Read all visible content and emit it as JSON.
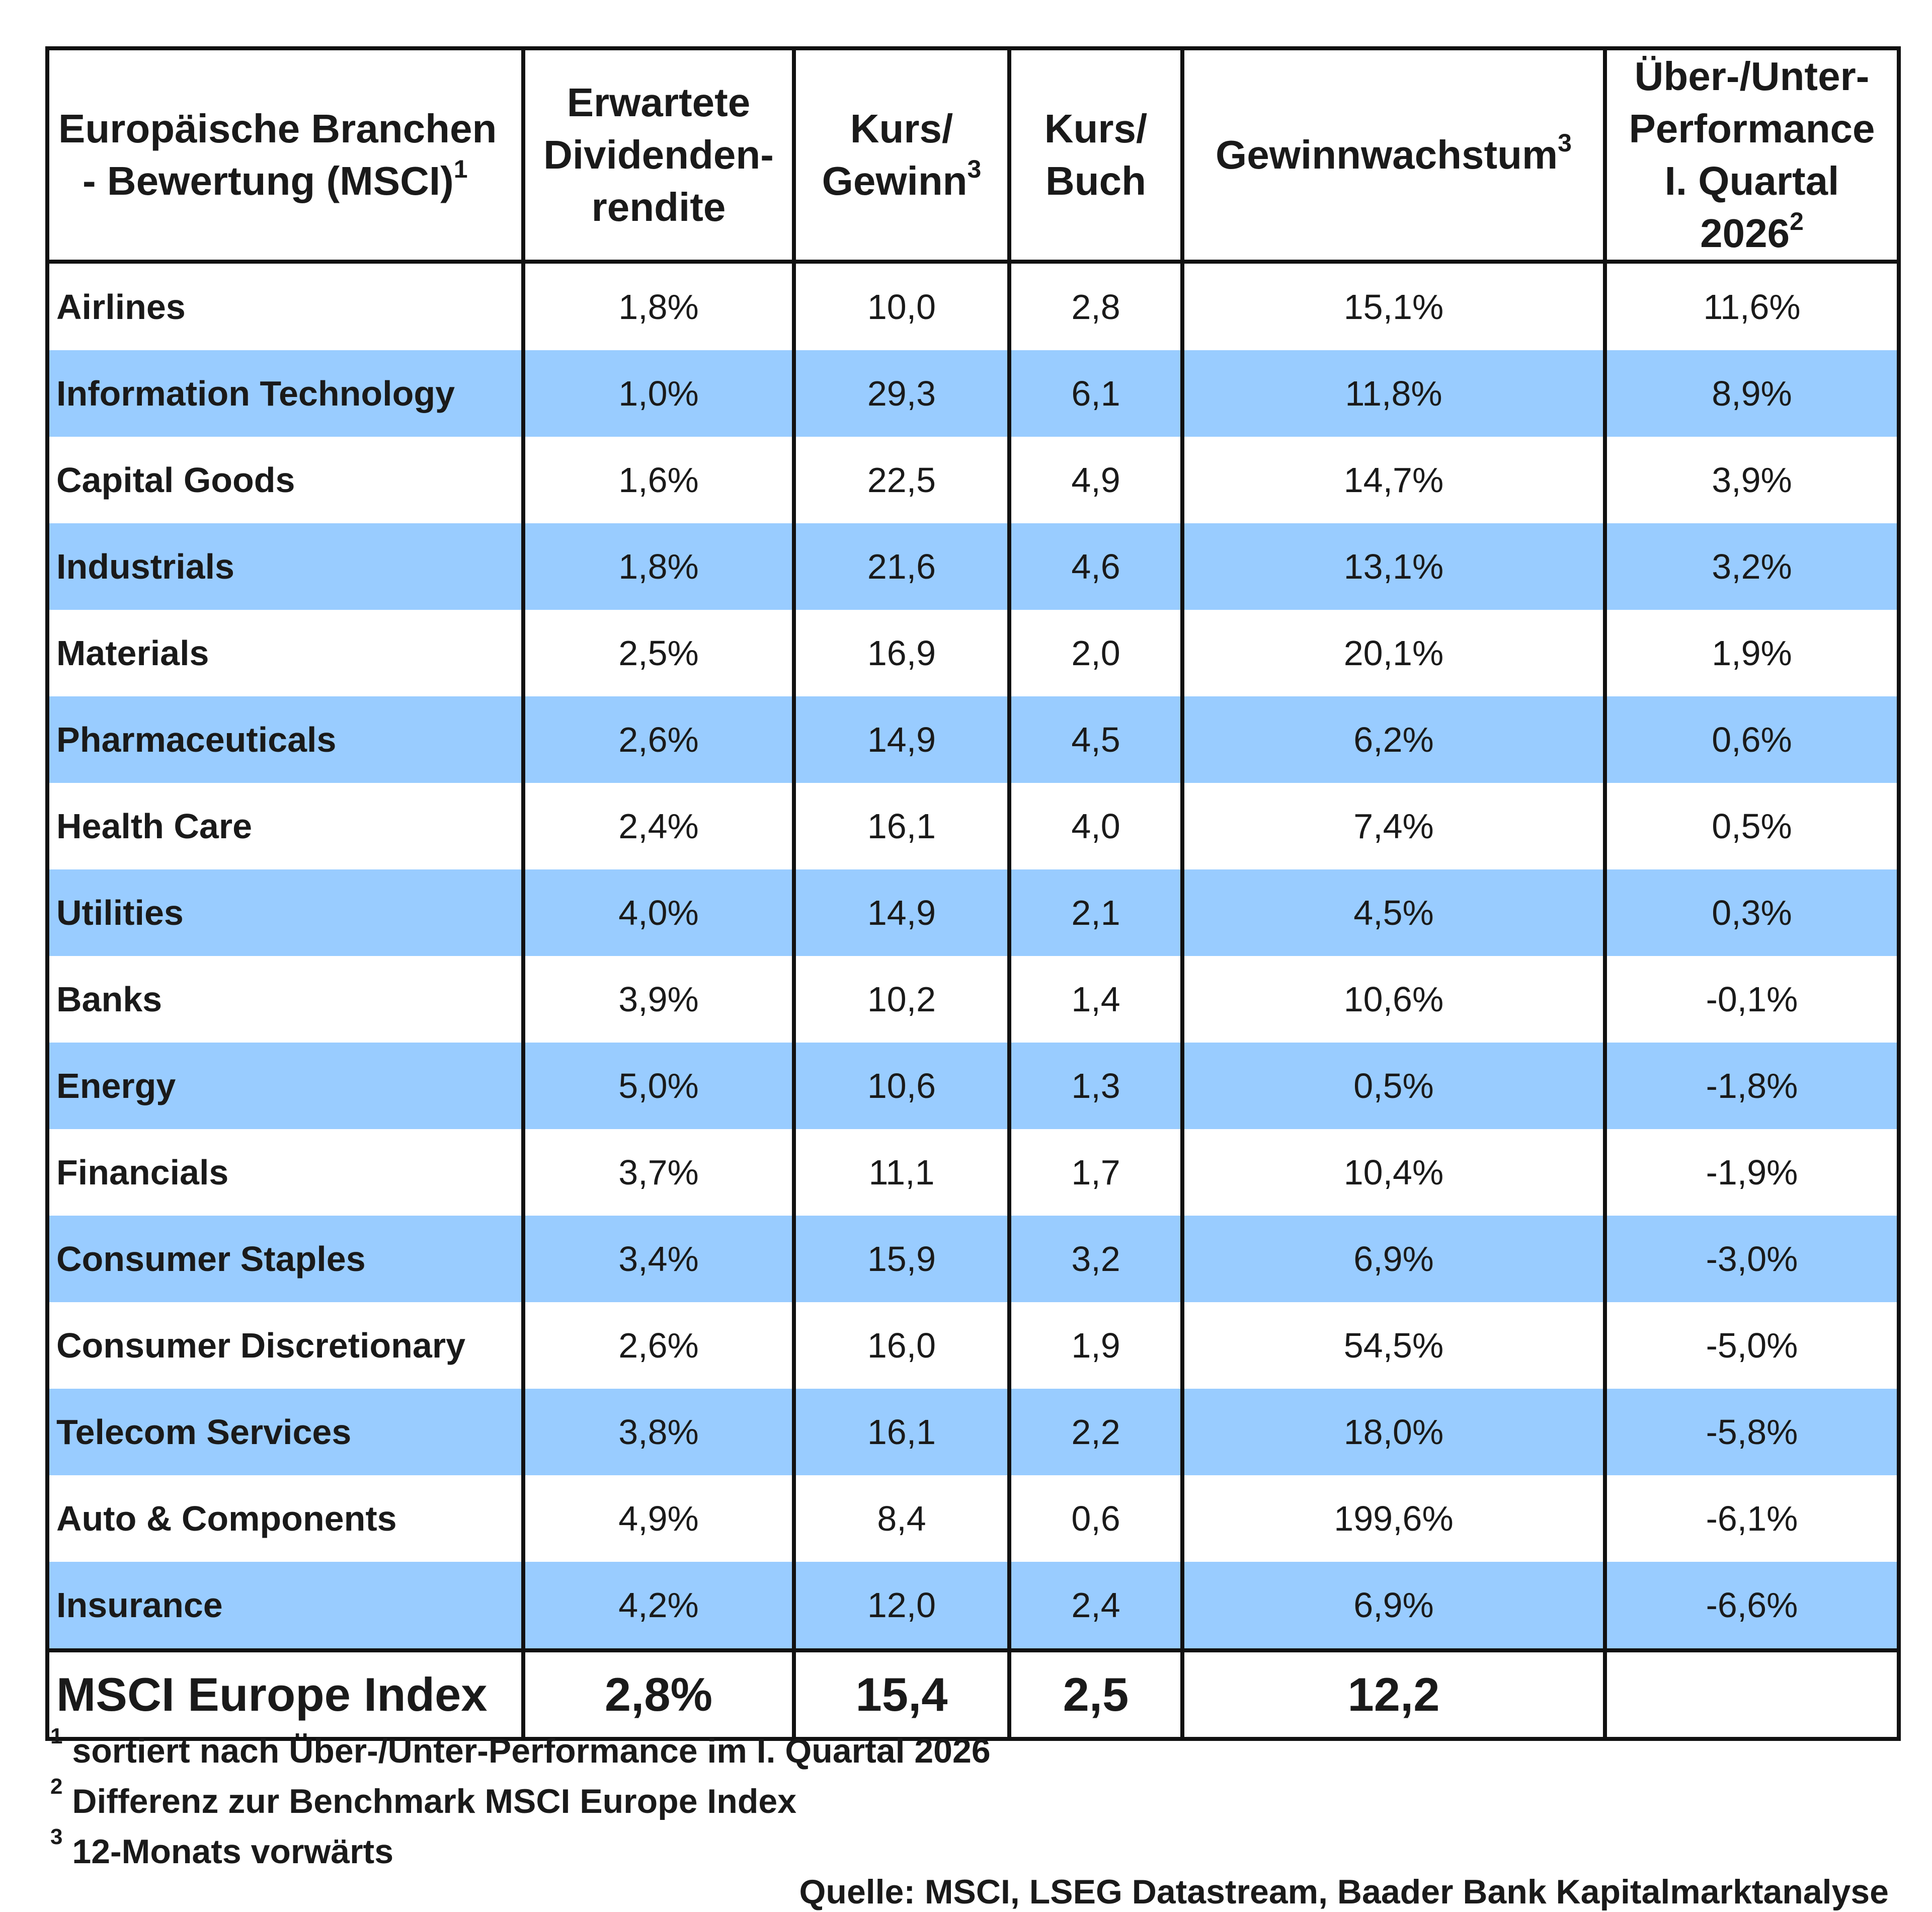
{
  "table": {
    "headers": {
      "name_line1": "Europäische Branchen",
      "name_line2": "- Bewertung (MSCI)",
      "name_sup": "1",
      "dividend_line1": "Erwartete",
      "dividend_line2": "Dividenden-",
      "dividend_line3": "rendite",
      "pe_line1": "Kurs/",
      "pe_line2": "Gewinn",
      "pe_sup": "3",
      "pb_line1": "Kurs/",
      "pb_line2": "Buch",
      "growth": "Gewinnwachstum",
      "growth_sup": "3",
      "perf_line1": "Über-/Unter-",
      "perf_line2": "Performance",
      "perf_line3": "I. Quartal",
      "perf_line4": "2026",
      "perf_sup": "2"
    },
    "rows": [
      {
        "name": "Airlines",
        "dividend": "1,8%",
        "pe": "10,0",
        "pb": "2,8",
        "growth": "15,1%",
        "perf": "11,6%"
      },
      {
        "name": "Information Technology",
        "dividend": "1,0%",
        "pe": "29,3",
        "pb": "6,1",
        "growth": "11,8%",
        "perf": "8,9%"
      },
      {
        "name": "Capital Goods",
        "dividend": "1,6%",
        "pe": "22,5",
        "pb": "4,9",
        "growth": "14,7%",
        "perf": "3,9%"
      },
      {
        "name": "Industrials",
        "dividend": "1,8%",
        "pe": "21,6",
        "pb": "4,6",
        "growth": "13,1%",
        "perf": "3,2%"
      },
      {
        "name": "Materials",
        "dividend": "2,5%",
        "pe": "16,9",
        "pb": "2,0",
        "growth": "20,1%",
        "perf": "1,9%"
      },
      {
        "name": "Pharmaceuticals",
        "dividend": "2,6%",
        "pe": "14,9",
        "pb": "4,5",
        "growth": "6,2%",
        "perf": "0,6%"
      },
      {
        "name": "Health Care",
        "dividend": "2,4%",
        "pe": "16,1",
        "pb": "4,0",
        "growth": "7,4%",
        "perf": "0,5%"
      },
      {
        "name": "Utilities",
        "dividend": "4,0%",
        "pe": "14,9",
        "pb": "2,1",
        "growth": "4,5%",
        "perf": "0,3%"
      },
      {
        "name": "Banks",
        "dividend": "3,9%",
        "pe": "10,2",
        "pb": "1,4",
        "growth": "10,6%",
        "perf": "-0,1%"
      },
      {
        "name": "Energy",
        "dividend": "5,0%",
        "pe": "10,6",
        "pb": "1,3",
        "growth": "0,5%",
        "perf": "-1,8%"
      },
      {
        "name": "Financials",
        "dividend": "3,7%",
        "pe": "11,1",
        "pb": "1,7",
        "growth": "10,4%",
        "perf": "-1,9%"
      },
      {
        "name": "Consumer Staples",
        "dividend": "3,4%",
        "pe": "15,9",
        "pb": "3,2",
        "growth": "6,9%",
        "perf": "-3,0%"
      },
      {
        "name": "Consumer Discretionary",
        "dividend": "2,6%",
        "pe": "16,0",
        "pb": "1,9",
        "growth": "54,5%",
        "perf": "-5,0%"
      },
      {
        "name": "Telecom Services",
        "dividend": "3,8%",
        "pe": "16,1",
        "pb": "2,2",
        "growth": "18,0%",
        "perf": "-5,8%"
      },
      {
        "name": "Auto & Components",
        "dividend": "4,9%",
        "pe": "8,4",
        "pb": "0,6",
        "growth": "199,6%",
        "perf": "-6,1%"
      },
      {
        "name": "Insurance",
        "dividend": "4,2%",
        "pe": "12,0",
        "pb": "2,4",
        "growth": "6,9%",
        "perf": "-6,6%"
      }
    ],
    "total": {
      "name": "MSCI Europe Index",
      "dividend": "2,8%",
      "pe": "15,4",
      "pb": "2,5",
      "growth": "12,2",
      "perf": ""
    },
    "row_shade_color": "#99ccff"
  },
  "footnotes": [
    {
      "mark": "1",
      "text": "sortiert nach Über-/Unter-Performance im I. Quartal 2026"
    },
    {
      "mark": "2",
      "text": "Differenz zur Benchmark MSCI Europe Index"
    },
    {
      "mark": "3",
      "text": "12-Monats vorwärts"
    }
  ],
  "source": "Quelle: MSCI, LSEG Datastream, Baader Bank Kapitalmarktanalyse"
}
